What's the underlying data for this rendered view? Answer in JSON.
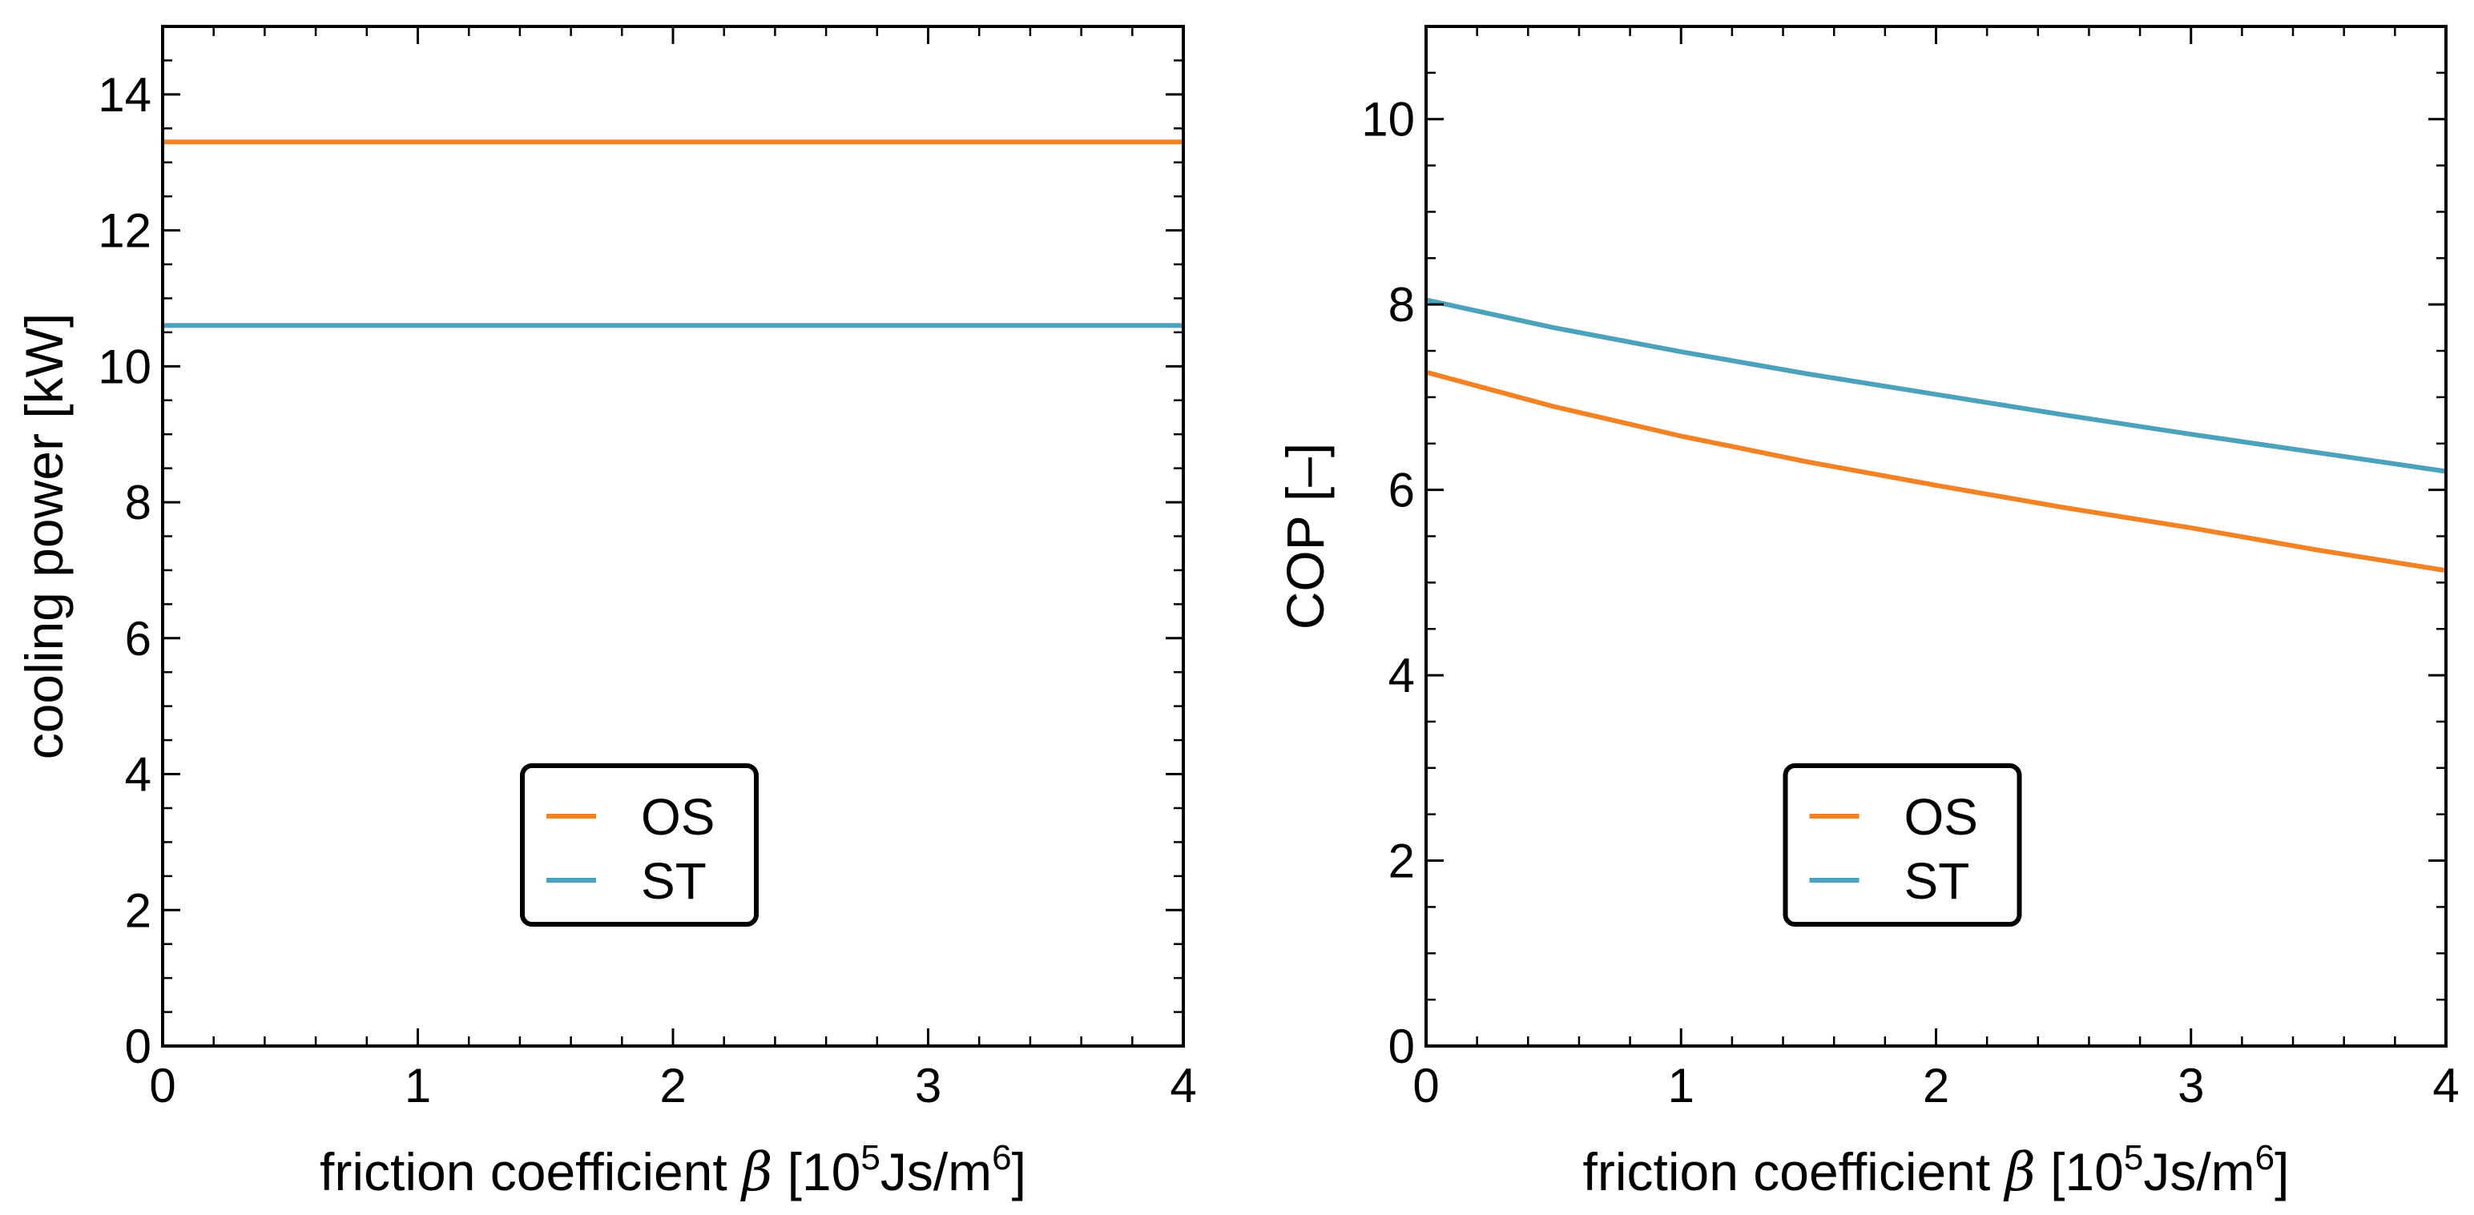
{
  "chart_data": [
    {
      "type": "line",
      "id": "left",
      "title": "",
      "xlabel": {
        "main": "friction coefficient ",
        "symbol": "β",
        "open": " [10",
        "exp1": "5",
        "mid": "Js/m",
        "exp2": "6",
        "close": "]"
      },
      "ylabel": "cooling power [kW]",
      "xlim": [
        0,
        4
      ],
      "ylim": [
        0,
        15
      ],
      "xticks": [
        0,
        1,
        2,
        3,
        4
      ],
      "yticks": [
        0,
        2,
        4,
        6,
        8,
        10,
        12,
        14
      ],
      "xticklabels": [
        "0",
        "1",
        "2",
        "3",
        "4"
      ],
      "yticklabels": [
        "0",
        "2",
        "4",
        "6",
        "8",
        "10",
        "12",
        "14"
      ],
      "x_minor_step": 0.2,
      "y_minor_step": 0.5,
      "legend_position": "lower-center",
      "series": [
        {
          "name": "OS",
          "color": "#F28223",
          "x": [
            0,
            0.5,
            1,
            1.5,
            2,
            2.5,
            3,
            3.5,
            4
          ],
          "y": [
            13.3,
            13.3,
            13.3,
            13.3,
            13.3,
            13.3,
            13.3,
            13.3,
            13.3
          ]
        },
        {
          "name": "ST",
          "color": "#4DA2BB",
          "x": [
            0,
            0.5,
            1,
            1.5,
            2,
            2.5,
            3,
            3.5,
            4
          ],
          "y": [
            10.6,
            10.6,
            10.6,
            10.6,
            10.6,
            10.6,
            10.6,
            10.6,
            10.6
          ]
        }
      ]
    },
    {
      "type": "line",
      "id": "right",
      "title": "",
      "xlabel": {
        "main": "friction coefficient ",
        "symbol": "β",
        "open": " [10",
        "exp1": "5",
        "mid": "Js/m",
        "exp2": "6",
        "close": "]"
      },
      "ylabel": "COP [–]",
      "xlim": [
        0,
        4
      ],
      "ylim": [
        0,
        11
      ],
      "xticks": [
        0,
        1,
        2,
        3,
        4
      ],
      "yticks": [
        0,
        2,
        4,
        6,
        8,
        10
      ],
      "xticklabels": [
        "0",
        "1",
        "2",
        "3",
        "4"
      ],
      "yticklabels": [
        "0",
        "2",
        "4",
        "6",
        "8",
        "10"
      ],
      "x_minor_step": 0.2,
      "y_minor_step": 0.5,
      "legend_position": "lower-center",
      "series": [
        {
          "name": "OS",
          "color": "#F28223",
          "x": [
            0,
            0.5,
            1,
            1.5,
            2,
            2.5,
            3,
            3.5,
            4
          ],
          "y": [
            7.27,
            6.9,
            6.58,
            6.3,
            6.05,
            5.81,
            5.59,
            5.35,
            5.13
          ]
        },
        {
          "name": "ST",
          "color": "#4DA2BB",
          "x": [
            0,
            0.5,
            1,
            1.5,
            2,
            2.5,
            3,
            3.5,
            4
          ],
          "y": [
            8.05,
            7.75,
            7.49,
            7.25,
            7.03,
            6.81,
            6.6,
            6.4,
            6.2
          ]
        }
      ]
    }
  ]
}
